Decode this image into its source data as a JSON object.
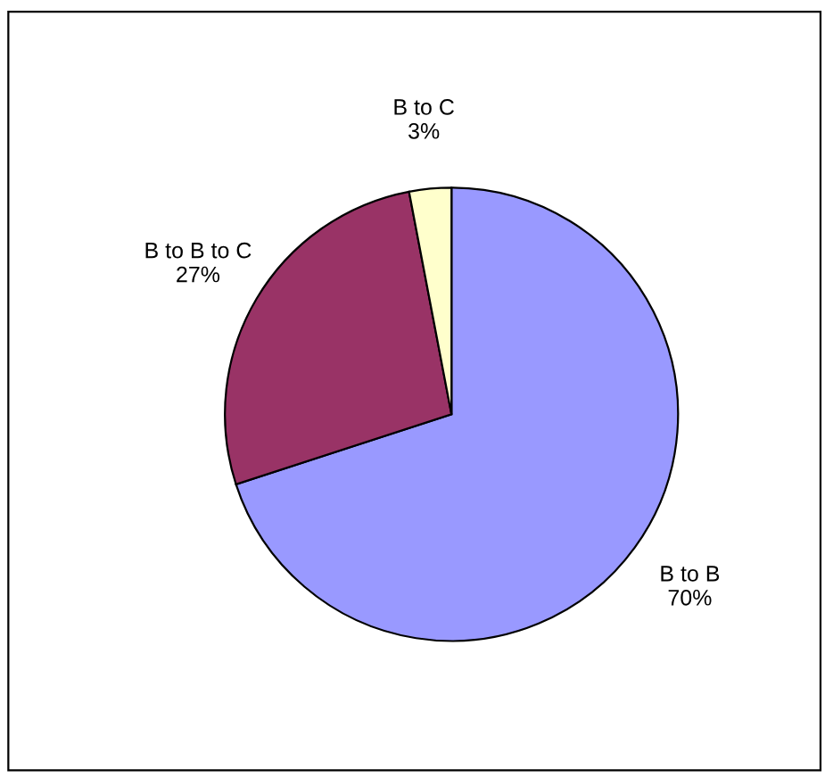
{
  "chart_data": {
    "type": "pie",
    "categories": [
      "B to B",
      "B to B to C",
      "B to C"
    ],
    "values": [
      70,
      27,
      3
    ],
    "value_labels": [
      "70%",
      "27%",
      "3%"
    ],
    "colors": [
      "#9999ff",
      "#993366",
      "#ffffcc"
    ]
  }
}
